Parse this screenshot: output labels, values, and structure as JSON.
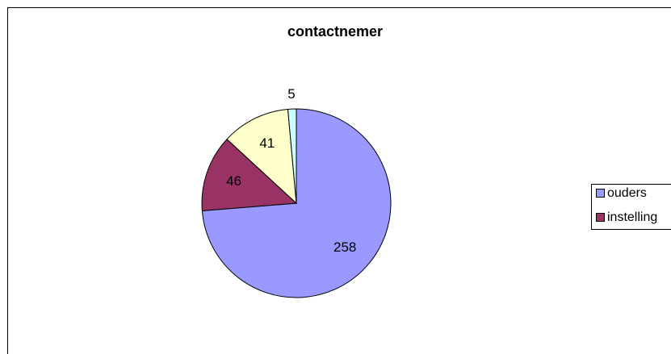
{
  "chart_data": {
    "type": "pie",
    "title": "contactnemer",
    "categories": [
      "ouders",
      "instelling",
      null,
      null
    ],
    "values": [
      258,
      46,
      41,
      5
    ],
    "colors": [
      "#9999ff",
      "#993366",
      "#ffffcc",
      "#ccffff"
    ],
    "legend": "right"
  }
}
